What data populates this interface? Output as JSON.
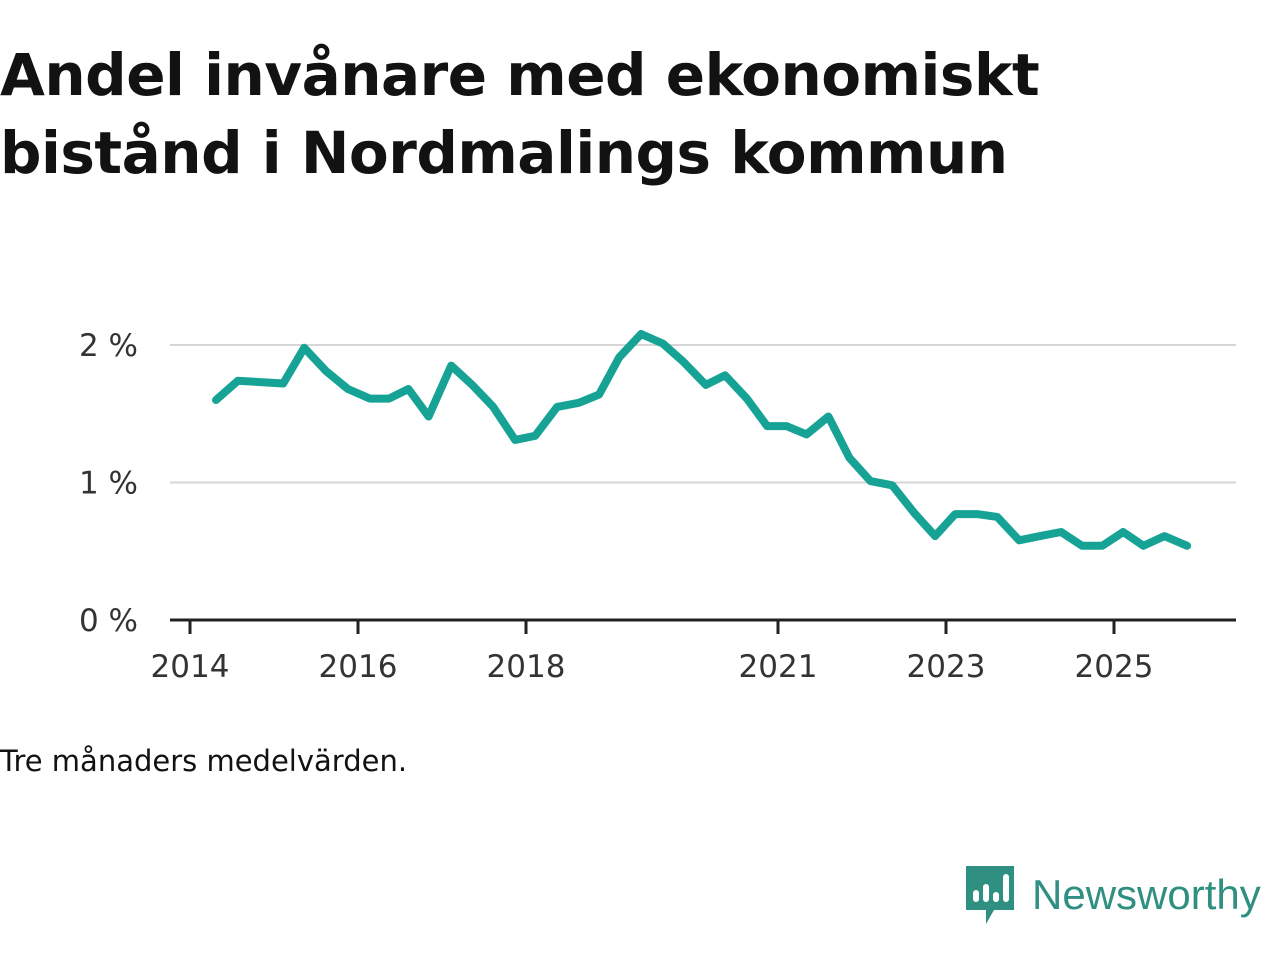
{
  "chart_data": {
    "type": "line",
    "title": "Andel invånare med ekonomiskt bistånd i Nordmalings kommun",
    "note": "Tre månaders medelvärden.",
    "xlabel": "",
    "ylabel": "",
    "ylim": [
      0,
      2.0
    ],
    "xlim": [
      2014,
      2026.3
    ],
    "yticks": [
      {
        "value": 0,
        "label": "0 %"
      },
      {
        "value": 1,
        "label": "1 %"
      },
      {
        "value": 2,
        "label": "2 %"
      }
    ],
    "xticks": [
      {
        "value": 2014,
        "label": "2014"
      },
      {
        "value": 2016,
        "label": "2016"
      },
      {
        "value": 2018,
        "label": "2018"
      },
      {
        "value": 2021,
        "label": "2021"
      },
      {
        "value": 2023,
        "label": "2023"
      },
      {
        "value": 2025,
        "label": "2025"
      }
    ],
    "line_color": "#16a396",
    "series": [
      {
        "name": "Andel invånare med ekonomiskt bistånd",
        "x": [
          2014.31,
          2014.57,
          2014.84,
          2015.11,
          2015.36,
          2015.62,
          2015.88,
          2016.14,
          2016.37,
          2016.6,
          2016.84,
          2017.11,
          2017.36,
          2017.61,
          2017.87,
          2018.11,
          2018.37,
          2018.63,
          2018.87,
          2019.11,
          2019.37,
          2019.63,
          2019.87,
          2020.14,
          2020.37,
          2020.63,
          2020.87,
          2021.1,
          2021.34,
          2021.6,
          2021.85,
          2022.1,
          2022.36,
          2022.62,
          2022.87,
          2023.11,
          2023.37,
          2023.61,
          2023.87,
          2024.12,
          2024.37,
          2024.62,
          2024.86,
          2025.11,
          2025.35,
          2025.6,
          2025.87
        ],
        "values": [
          1.6,
          1.74,
          1.73,
          1.72,
          1.98,
          1.81,
          1.68,
          1.61,
          1.61,
          1.68,
          1.48,
          1.85,
          1.71,
          1.55,
          1.31,
          1.34,
          1.55,
          1.58,
          1.64,
          1.91,
          2.08,
          2.01,
          1.88,
          1.71,
          1.78,
          1.61,
          1.41,
          1.41,
          1.35,
          1.48,
          1.18,
          1.01,
          0.98,
          0.78,
          0.61,
          0.77,
          0.77,
          0.75,
          0.58,
          0.61,
          0.64,
          0.54,
          0.54,
          0.64,
          0.54,
          0.61,
          0.54
        ]
      }
    ]
  },
  "brand": {
    "name": "Newsworthy",
    "color": "#2f8f80",
    "logo_icon": "newsworthy-bar-chart-logo"
  }
}
